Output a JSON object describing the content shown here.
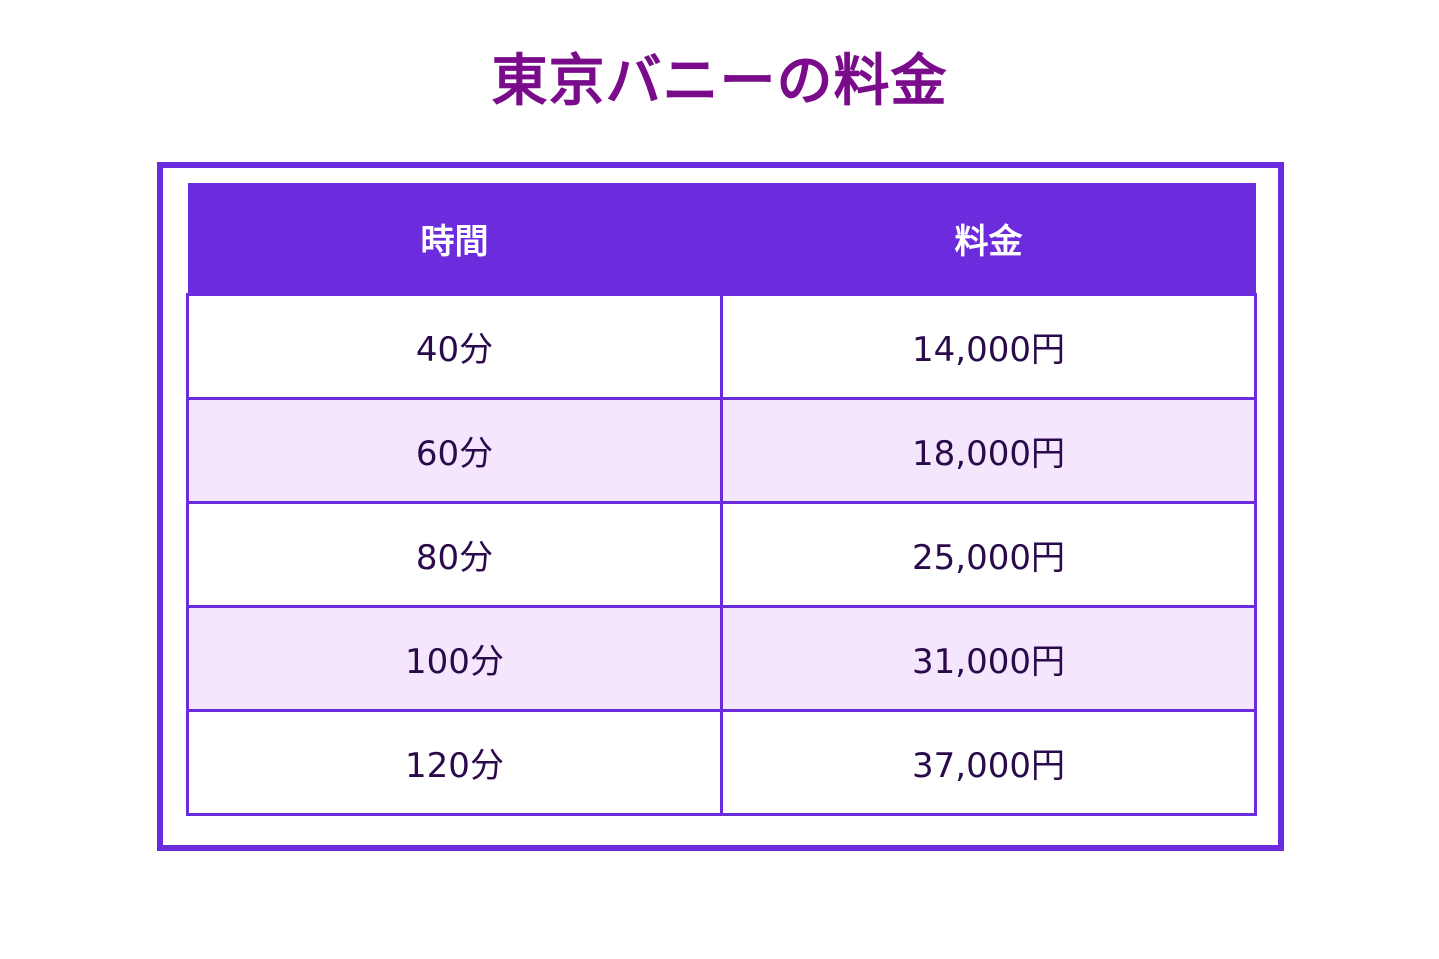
{
  "title": "東京バニーの料金",
  "table": {
    "headers": {
      "time": "時間",
      "price": "料金"
    },
    "rows": [
      {
        "time": "40分",
        "price": "14,000円"
      },
      {
        "time": "60分",
        "price": "18,000円"
      },
      {
        "time": "80分",
        "price": "25,000円"
      },
      {
        "time": "100分",
        "price": "31,000円"
      },
      {
        "time": "120分",
        "price": "37,000円"
      }
    ]
  },
  "colors": {
    "title": "#7a0c8c",
    "accent": "#6d2bde",
    "row_alt": "#f4e6fd",
    "text": "#2a0a4a"
  }
}
